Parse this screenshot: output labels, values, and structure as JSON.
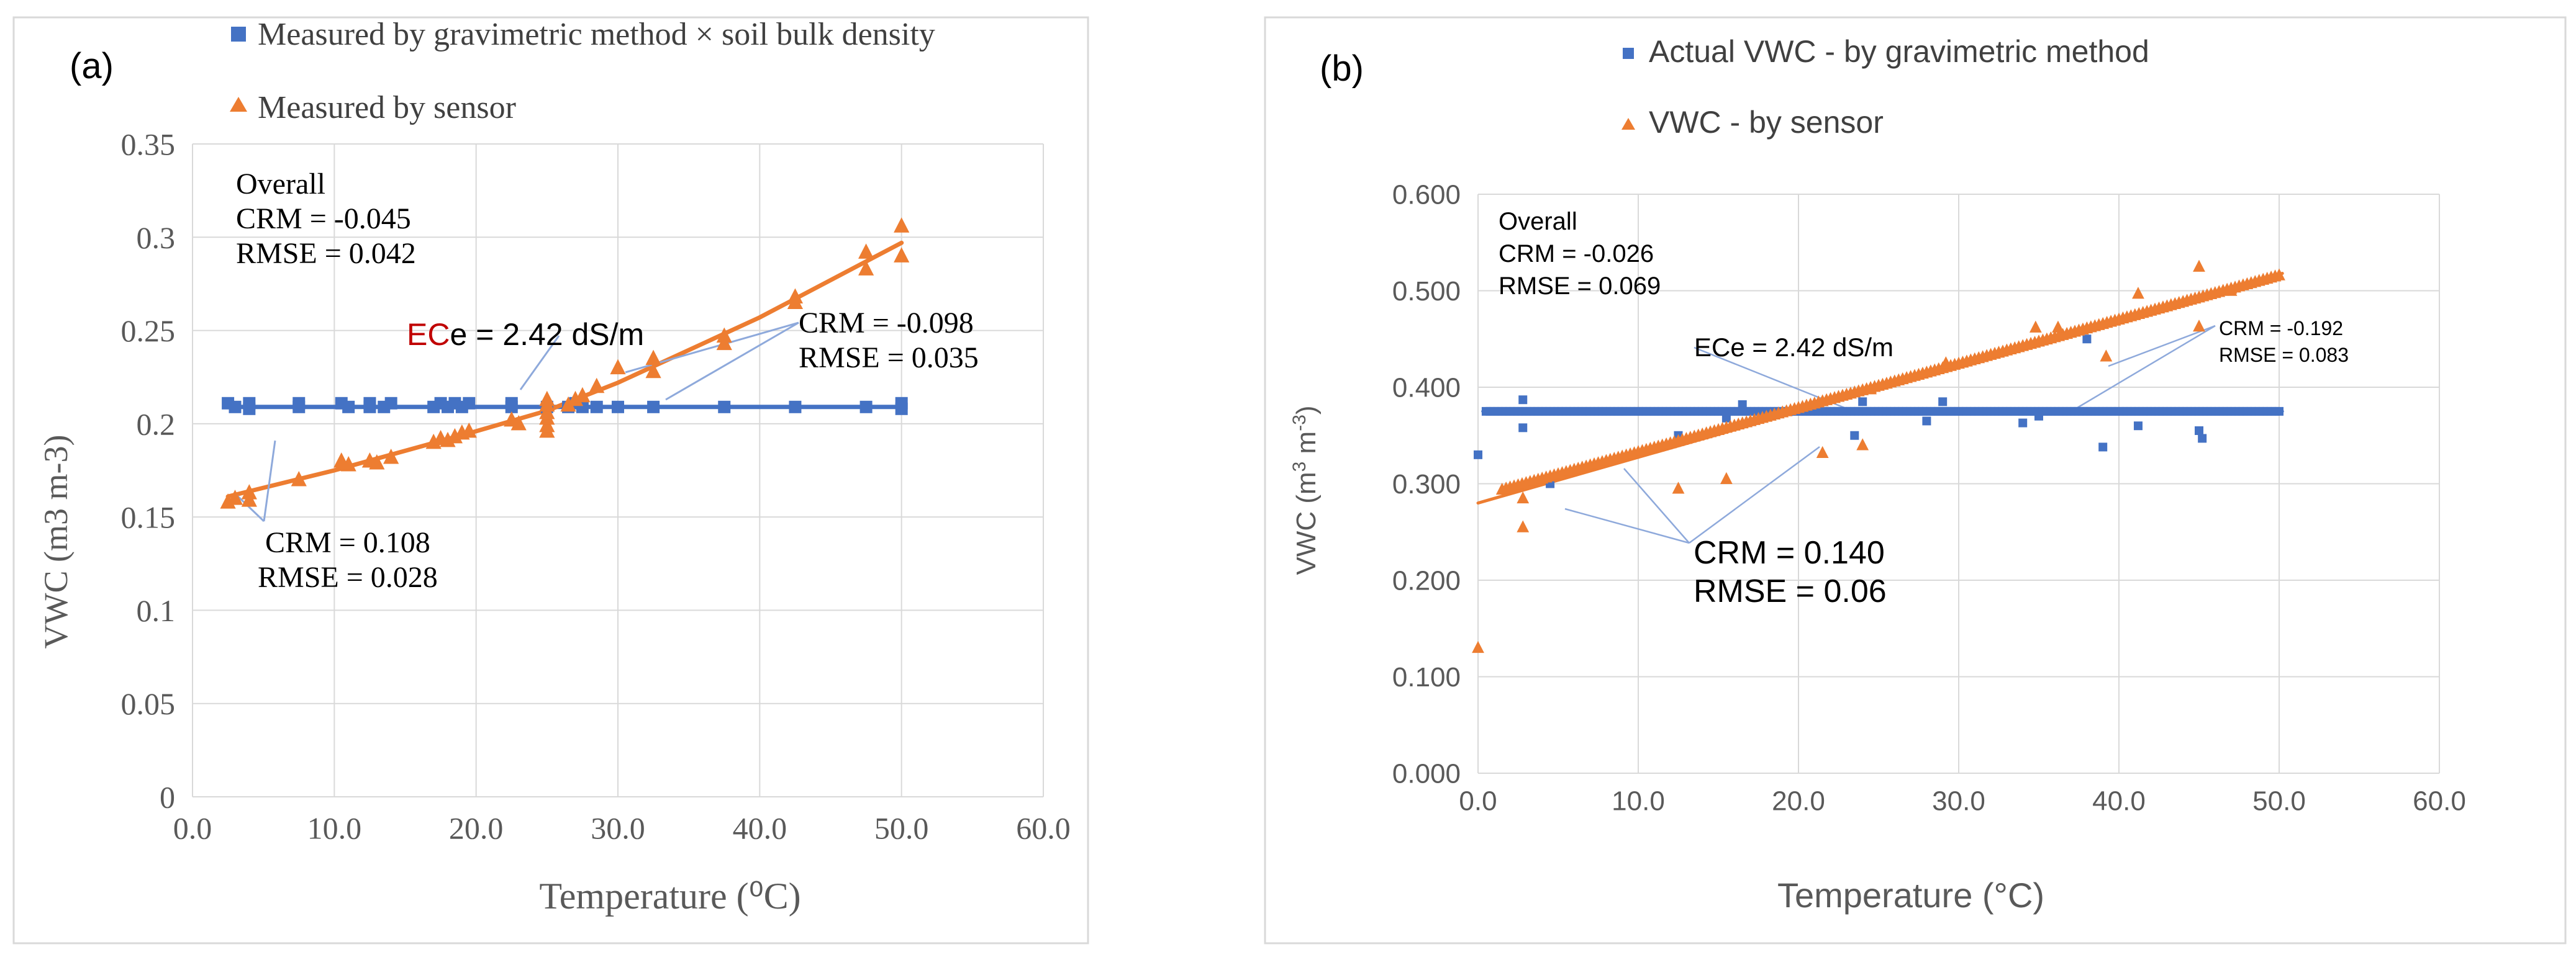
{
  "colors": {
    "blue": "#4472C4",
    "orange": "#ED7D31",
    "grid": "#D9D9D9",
    "axis": "#595959",
    "text": "#404040",
    "leader": "#8EA9DB",
    "ec_red": "#C00000"
  },
  "chart_data": [
    {
      "type": "scatter",
      "panel_label": "(a)",
      "xlabel": "Temperature (⁰C)",
      "ylabel": "VWC (m3 m-3)",
      "xlim": [
        0,
        60
      ],
      "ylim": [
        0,
        0.35
      ],
      "xticks": [
        "0.0",
        "10.0",
        "20.0",
        "30.0",
        "40.0",
        "50.0",
        "60.0"
      ],
      "yticks": [
        "0",
        "0.05",
        "0.1",
        "0.15",
        "0.2",
        "0.25",
        "0.3",
        "0.35"
      ],
      "legend": "top",
      "series": [
        {
          "name": "Measured by gravimetric method × soil bulk density",
          "marker": "square",
          "color": "blue",
          "points": [
            [
              2.5,
              0.211
            ],
            [
              3,
              0.209
            ],
            [
              4,
              0.211
            ],
            [
              4,
              0.208
            ],
            [
              7.5,
              0.209
            ],
            [
              7.5,
              0.211
            ],
            [
              10.5,
              0.211
            ],
            [
              11,
              0.209
            ],
            [
              12.5,
              0.209
            ],
            [
              12.5,
              0.211
            ],
            [
              13.5,
              0.209
            ],
            [
              14,
              0.211
            ],
            [
              17,
              0.209
            ],
            [
              17.5,
              0.211
            ],
            [
              18,
              0.209
            ],
            [
              18.5,
              0.211
            ],
            [
              19,
              0.209
            ],
            [
              19.5,
              0.211
            ],
            [
              22.5,
              0.211
            ],
            [
              22.5,
              0.209
            ],
            [
              25,
              0.209
            ],
            [
              26.5,
              0.209
            ],
            [
              27,
              0.211
            ],
            [
              27.5,
              0.209
            ],
            [
              28.5,
              0.209
            ],
            [
              30,
              0.209
            ],
            [
              32.5,
              0.209
            ],
            [
              37.5,
              0.209
            ],
            [
              42.5,
              0.209
            ],
            [
              47.5,
              0.209
            ],
            [
              50,
              0.211
            ],
            [
              50,
              0.208
            ]
          ],
          "trend": [
            [
              2.5,
              0.209
            ],
            [
              50,
              0.209
            ]
          ]
        },
        {
          "name": "Measured by sensor",
          "marker": "triangle",
          "color": "orange",
          "points": [
            [
              2.5,
              0.158
            ],
            [
              3,
              0.16
            ],
            [
              4,
              0.159
            ],
            [
              4,
              0.163
            ],
            [
              7.5,
              0.17
            ],
            [
              10.5,
              0.18
            ],
            [
              11,
              0.178
            ],
            [
              12.5,
              0.18
            ],
            [
              13,
              0.179
            ],
            [
              14,
              0.182
            ],
            [
              17,
              0.19
            ],
            [
              17.5,
              0.192
            ],
            [
              18,
              0.191
            ],
            [
              18.5,
              0.193
            ],
            [
              19,
              0.195
            ],
            [
              19.5,
              0.196
            ],
            [
              22.5,
              0.202
            ],
            [
              23,
              0.2
            ],
            [
              25,
              0.196
            ],
            [
              25,
              0.199
            ],
            [
              25,
              0.203
            ],
            [
              25,
              0.206
            ],
            [
              25,
              0.21
            ],
            [
              25,
              0.213
            ],
            [
              26.5,
              0.21
            ],
            [
              27,
              0.213
            ],
            [
              27.5,
              0.215
            ],
            [
              28.5,
              0.22
            ],
            [
              30,
              0.23
            ],
            [
              32.5,
              0.228
            ],
            [
              32.5,
              0.235
            ],
            [
              37.5,
              0.243
            ],
            [
              37.5,
              0.247
            ],
            [
              42.5,
              0.265
            ],
            [
              42.5,
              0.268
            ],
            [
              47.5,
              0.283
            ],
            [
              47.5,
              0.292
            ],
            [
              50,
              0.29
            ],
            [
              50,
              0.306
            ]
          ],
          "trend": [
            [
              2.5,
              0.161
            ],
            [
              10,
              0.175
            ],
            [
              20,
              0.196
            ],
            [
              25,
              0.207
            ],
            [
              30,
              0.222
            ],
            [
              40,
              0.257
            ],
            [
              50,
              0.297
            ]
          ]
        }
      ],
      "annotations": {
        "overall_title": "Overall",
        "overall_crm": "CRM = -0.045",
        "overall_rmse": "RMSE = 0.042",
        "low_crm": "CRM = 0.108",
        "low_rmse": "RMSE = 0.028",
        "high_crm": "CRM = -0.098",
        "high_rmse": "RMSE = 0.035",
        "ece_red": "EC",
        "ece_rest": "e = 2.42 dS/m"
      }
    },
    {
      "type": "scatter",
      "panel_label": "(b)",
      "xlabel": "Temperature (°C)",
      "ylabel_main": "VWC (m",
      "ylabel_sup1": "3",
      "ylabel_mid": " m",
      "ylabel_sup2": "-3",
      "ylabel_end": ")",
      "xlim": [
        0,
        60
      ],
      "ylim": [
        0,
        0.6
      ],
      "xticks": [
        "0.0",
        "10.0",
        "20.0",
        "30.0",
        "40.0",
        "50.0",
        "60.0"
      ],
      "yticks": [
        "0.000",
        "0.100",
        "0.200",
        "0.300",
        "0.400",
        "0.500",
        "0.600"
      ],
      "legend": "top",
      "series": [
        {
          "name": "Actual VWC - by gravimetric method",
          "marker": "square",
          "color": "blue",
          "dense_range": [
            0.5,
            50.2
          ],
          "dense_step": 0.25,
          "dense_value": 0.375,
          "points": [
            [
              0,
              0.33
            ],
            [
              2.8,
              0.387
            ],
            [
              2.8,
              0.358
            ],
            [
              4.5,
              0.3
            ],
            [
              12.5,
              0.35
            ],
            [
              15.5,
              0.368
            ],
            [
              16.5,
              0.382
            ],
            [
              23.5,
              0.35
            ],
            [
              24,
              0.385
            ],
            [
              28,
              0.365
            ],
            [
              29,
              0.385
            ],
            [
              34,
              0.363
            ],
            [
              35,
              0.37
            ],
            [
              38,
              0.45
            ],
            [
              39,
              0.338
            ],
            [
              41.2,
              0.36
            ],
            [
              45,
              0.355
            ],
            [
              45.2,
              0.347
            ]
          ],
          "trend": [
            [
              0.3,
              0.375
            ],
            [
              50.2,
              0.375
            ]
          ]
        },
        {
          "name": "VWC - by sensor",
          "marker": "triangle",
          "color": "orange",
          "dense_range": [
            1.5,
            50.2
          ],
          "dense_step": 0.25,
          "dense_from": 0.294,
          "dense_to": 0.517,
          "points": [
            [
              0,
              0.13
            ],
            [
              2.8,
              0.255
            ],
            [
              2.8,
              0.285
            ],
            [
              12.5,
              0.295
            ],
            [
              15.5,
              0.305
            ],
            [
              21.5,
              0.332
            ],
            [
              24,
              0.34
            ],
            [
              24.5,
              0.398
            ],
            [
              29.2,
              0.425
            ],
            [
              34.8,
              0.462
            ],
            [
              36.2,
              0.462
            ],
            [
              39.2,
              0.432
            ],
            [
              41.2,
              0.497
            ],
            [
              45,
              0.525
            ],
            [
              45,
              0.463
            ],
            [
              47,
              0.5
            ]
          ],
          "trend": [
            [
              0,
              0.28
            ],
            [
              50.2,
              0.518
            ]
          ]
        }
      ],
      "annotations": {
        "overall_title": "Overall",
        "overall_crm": "CRM = -0.026",
        "overall_rmse": "RMSE = 0.069",
        "mid_crm": "CRM = 0.140",
        "mid_rmse": "RMSE = 0.06",
        "high_crm": "CRM = -0.192",
        "high_rmse": "RMSE = 0.083",
        "ece": "ECe = 2.42 dS/m"
      }
    }
  ]
}
